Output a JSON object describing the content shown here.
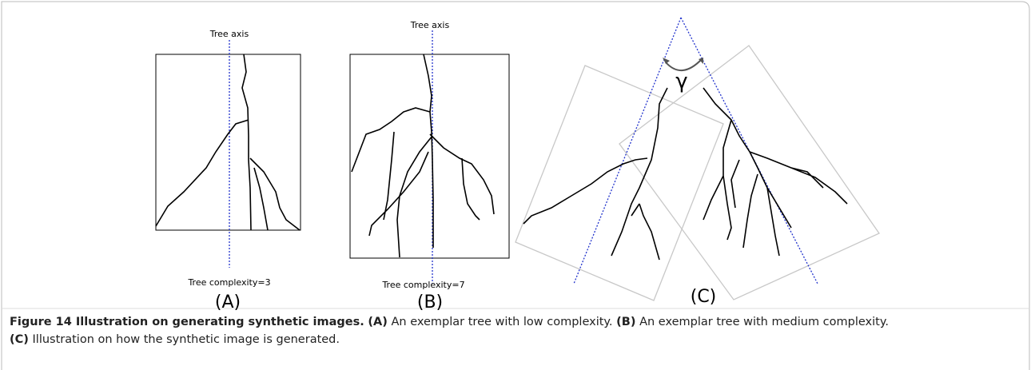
{
  "panels": [
    {
      "axis_label": "Tree axis",
      "complexity_label": "Tree complexity=3",
      "letter": "(A)"
    },
    {
      "axis_label": "Tree axis",
      "complexity_label": "Tree complexity=7",
      "letter": "(B)"
    },
    {
      "angle_label": "γ",
      "letter": "(C)"
    }
  ],
  "caption": {
    "title": "Figure 14 Illustration on generating synthetic images.",
    "parts": [
      {
        "label": "(A)",
        "text": " An exemplar tree with low complexity. "
      },
      {
        "label": "(B)",
        "text": " An exemplar tree with medium complexity. "
      },
      {
        "label": "(C)",
        "text": " Illustration on how the synthetic image is generated."
      }
    ]
  }
}
